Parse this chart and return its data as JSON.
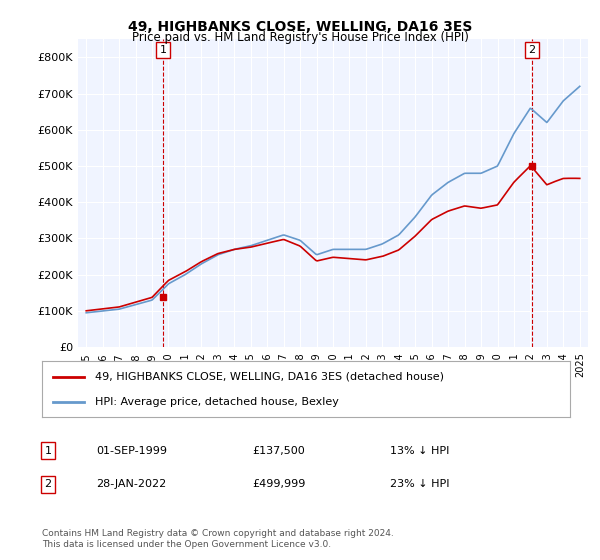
{
  "title": "49, HIGHBANKS CLOSE, WELLING, DA16 3ES",
  "subtitle": "Price paid vs. HM Land Registry's House Price Index (HPI)",
  "red_label": "49, HIGHBANKS CLOSE, WELLING, DA16 3ES (detached house)",
  "blue_label": "HPI: Average price, detached house, Bexley",
  "annotation1_label": "1",
  "annotation1_date": "01-SEP-1999",
  "annotation1_price": "£137,500",
  "annotation1_hpi": "13% ↓ HPI",
  "annotation2_label": "2",
  "annotation2_date": "28-JAN-2022",
  "annotation2_price": "£499,999",
  "annotation2_hpi": "23% ↓ HPI",
  "footer": "Contains HM Land Registry data © Crown copyright and database right 2024.\nThis data is licensed under the Open Government Licence v3.0.",
  "ylim": [
    0,
    850000
  ],
  "yticks": [
    0,
    100000,
    200000,
    300000,
    400000,
    500000,
    600000,
    700000,
    800000
  ],
  "background_color": "#ffffff",
  "plot_bg_color": "#f0f4ff",
  "grid_color": "#ffffff",
  "red_color": "#cc0000",
  "blue_color": "#6699cc"
}
